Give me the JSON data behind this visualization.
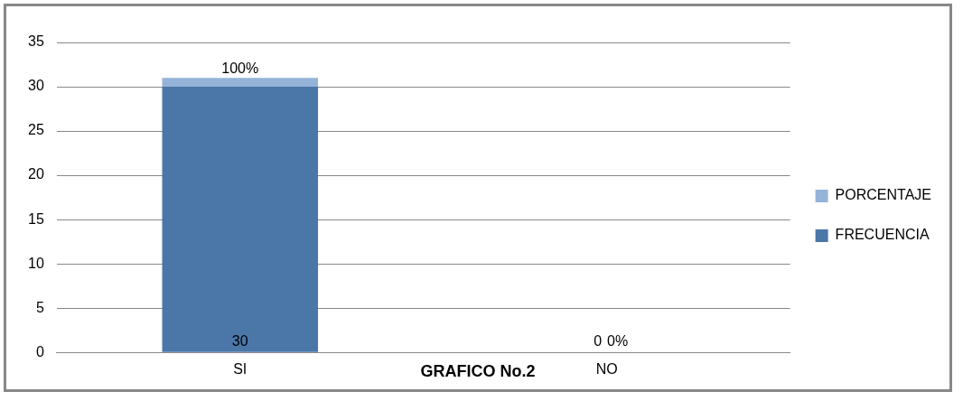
{
  "chart_data": {
    "type": "bar",
    "title": "GRAFICO No.2",
    "categories": [
      "SI",
      "NO"
    ],
    "stacked": true,
    "series": [
      {
        "name": "FRECUENCIA",
        "color": "#4a76a8",
        "values": [
          30,
          0
        ],
        "value_labels": [
          "30",
          "0"
        ]
      },
      {
        "name": "PORCENTAJE",
        "color": "#95b3d7",
        "values": [
          1,
          0
        ],
        "value_labels": [
          "100%",
          "0%"
        ]
      }
    ],
    "ylim": [
      0,
      35
    ],
    "yticks": [
      0,
      5,
      10,
      15,
      20,
      25,
      30,
      35
    ],
    "grid": "y",
    "legend": "right"
  }
}
